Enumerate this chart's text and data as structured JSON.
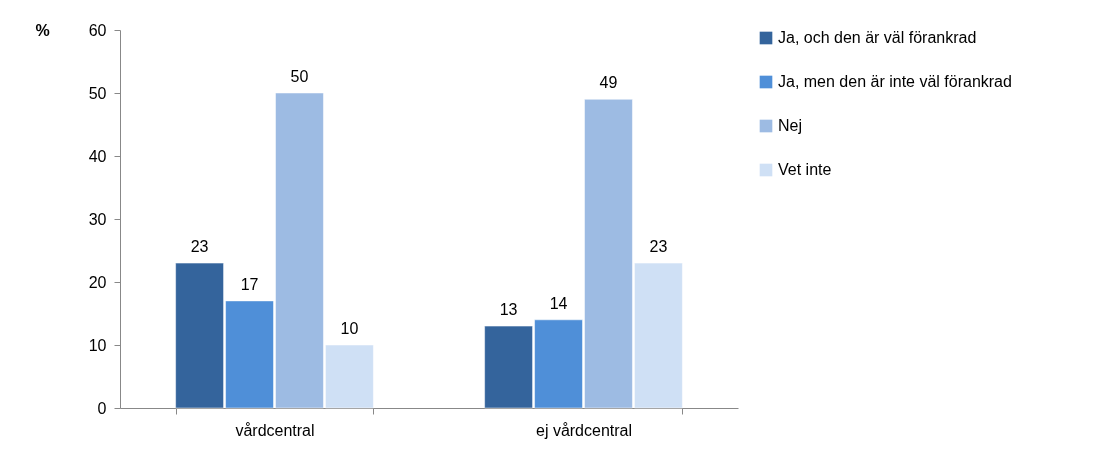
{
  "chart_data": {
    "type": "bar",
    "ylabel": "%",
    "categories": [
      "vårdcentral",
      "ej vårdcentral"
    ],
    "series": [
      {
        "name": "Ja, och den är väl förankrad",
        "color": "#34649c",
        "values": [
          23,
          13
        ]
      },
      {
        "name": "Ja, men den är inte väl förankrad",
        "color": "#4f8fd8",
        "values": [
          17,
          14
        ]
      },
      {
        "name": "Nej",
        "color": "#9dbbe3",
        "values": [
          50,
          49
        ]
      },
      {
        "name": "Vet inte",
        "color": "#cfe0f5",
        "values": [
          10,
          23
        ]
      }
    ],
    "ylim": [
      0,
      60
    ],
    "yticks": [
      0,
      10,
      20,
      30,
      40,
      50,
      60
    ],
    "data_labels": true,
    "legend": "right",
    "grid": false
  }
}
